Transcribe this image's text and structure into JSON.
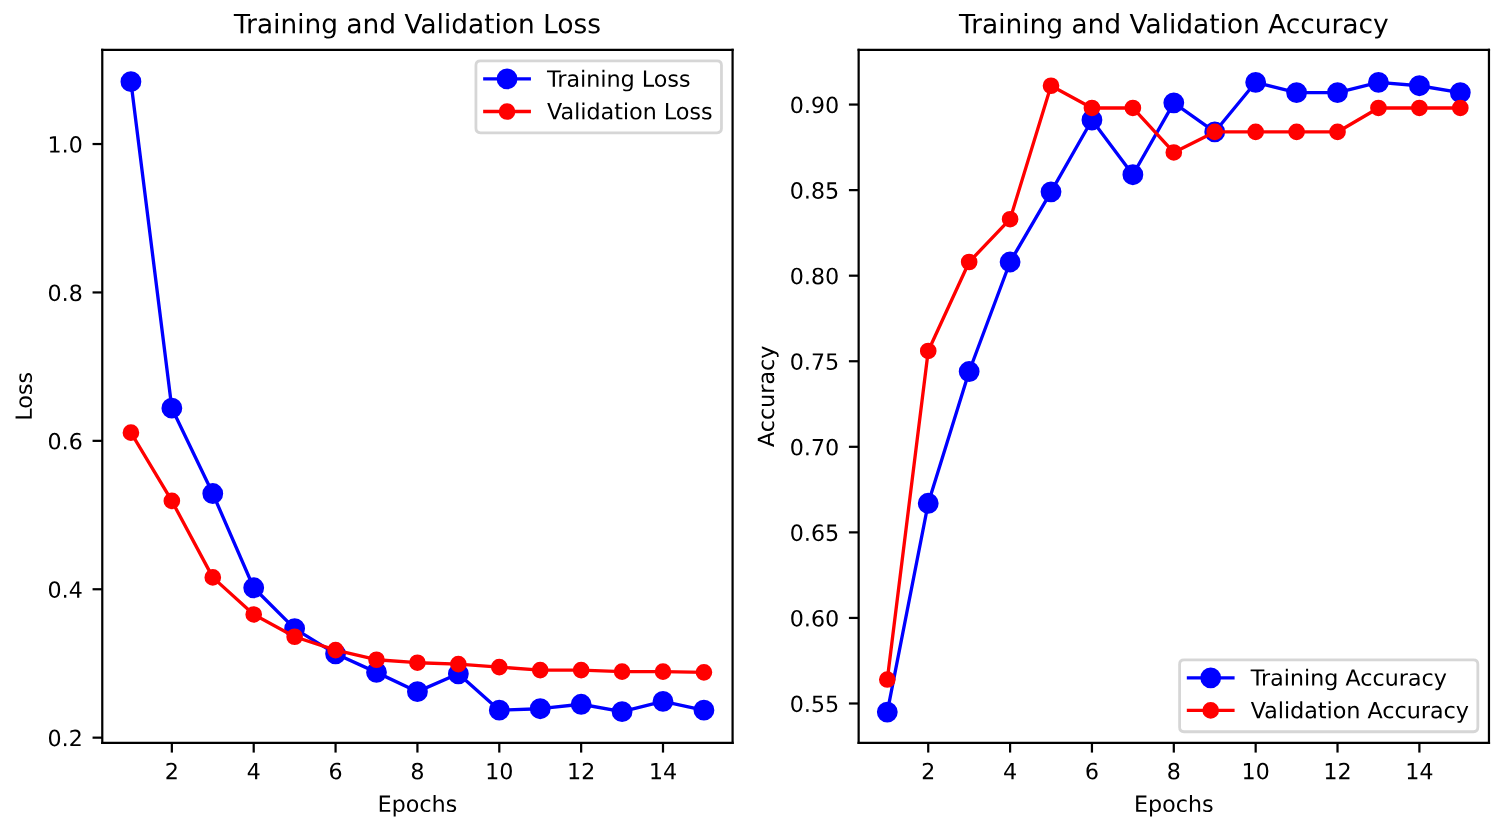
{
  "chart_data": [
    {
      "type": "line",
      "title": "Training and Validation Loss",
      "xlabel": "Epochs",
      "ylabel": "Loss",
      "x": [
        1,
        2,
        3,
        4,
        5,
        6,
        7,
        8,
        9,
        10,
        11,
        12,
        13,
        14,
        15
      ],
      "series": [
        {
          "name": "Training Loss",
          "color": "#0000ff",
          "values": [
            1.084,
            0.644,
            0.529,
            0.402,
            0.347,
            0.313,
            0.288,
            0.262,
            0.286,
            0.237,
            0.239,
            0.245,
            0.235,
            0.249,
            0.237
          ]
        },
        {
          "name": "Validation Loss",
          "color": "#ff0000",
          "values": [
            0.611,
            0.519,
            0.416,
            0.366,
            0.336,
            0.318,
            0.305,
            0.301,
            0.299,
            0.295,
            0.291,
            0.291,
            0.289,
            0.289,
            0.288
          ]
        }
      ],
      "xlim": [
        0.3,
        15.7
      ],
      "ylim": [
        0.193,
        1.127
      ],
      "xticks": [
        2,
        4,
        6,
        8,
        10,
        12,
        14
      ],
      "yticks": [
        0.2,
        0.4,
        0.6,
        0.8,
        {
          "value": 1.0,
          "label": "1.0"
        }
      ],
      "marker": "circle",
      "line_style": "solid",
      "legend": "top right",
      "grid": false
    },
    {
      "type": "line",
      "title": "Training and Validation Accuracy",
      "xlabel": "Epochs",
      "ylabel": "Accuracy",
      "x": [
        1,
        2,
        3,
        4,
        5,
        6,
        7,
        8,
        9,
        10,
        11,
        12,
        13,
        14,
        15
      ],
      "series": [
        {
          "name": "Training Accuracy",
          "color": "#0000ff",
          "values": [
            0.545,
            0.667,
            0.744,
            0.808,
            0.849,
            0.891,
            0.859,
            0.901,
            0.884,
            0.913,
            0.907,
            0.907,
            0.913,
            0.911,
            0.907
          ]
        },
        {
          "name": "Validation Accuracy",
          "color": "#ff0000",
          "values": [
            0.564,
            0.756,
            0.808,
            0.833,
            0.911,
            0.898,
            0.898,
            0.872,
            0.884,
            0.884,
            0.884,
            0.884,
            0.898,
            0.898,
            0.898
          ]
        }
      ],
      "xlim": [
        0.3,
        15.7
      ],
      "ylim": [
        0.527,
        0.932
      ],
      "xticks": [
        2,
        4,
        6,
        8,
        10,
        12,
        14
      ],
      "yticks": [
        0.55,
        {
          "value": 0.6,
          "label": "0.60"
        },
        0.65,
        {
          "value": 0.7,
          "label": "0.70"
        },
        0.75,
        {
          "value": 0.8,
          "label": "0.80"
        },
        0.85,
        {
          "value": 0.9,
          "label": "0.90"
        }
      ],
      "marker": "circle",
      "line_style": "solid",
      "legend": "lower right",
      "grid": false
    }
  ]
}
